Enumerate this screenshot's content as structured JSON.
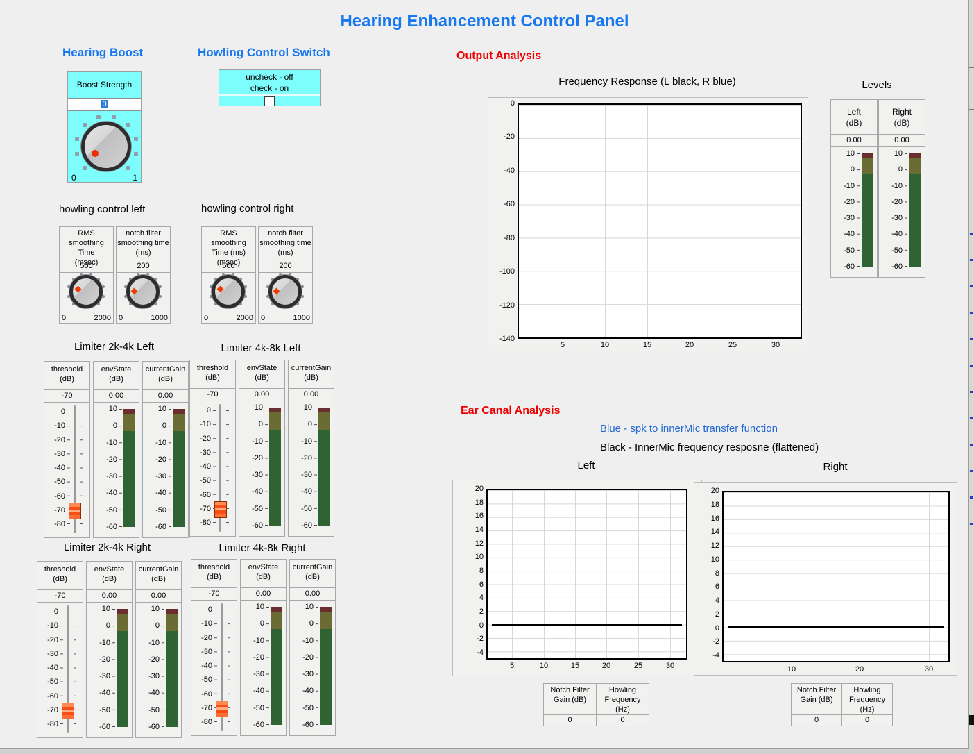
{
  "window": {
    "title": "Hearing Enhancement Control Panel"
  },
  "colors": {
    "accent_blue": "#1778f0",
    "heading_red": "#ee0000",
    "cyan_panel": "#7efdfd",
    "legend_blue": "#2468d4",
    "meter_red": "#6b2e2e",
    "meter_olive": "#6b6b34",
    "meter_green": "#306334",
    "slider_orange": "#f64e14"
  },
  "hearing_boost": {
    "heading": "Hearing Boost",
    "label": "Boost Strength",
    "value": "0",
    "min": "0",
    "max": "1"
  },
  "howling_switch": {
    "heading": "Howling Control Switch",
    "caption": "uncheck - off\ncheck - on",
    "checked": false
  },
  "howling_controls": [
    {
      "title": "howling control left",
      "knobs": [
        {
          "label": "RMS smoothing\nTime\n(msec)",
          "value": "500",
          "min": "0",
          "max": "2000"
        },
        {
          "label": "notch filter\nsmoothing time\n(ms)",
          "value": "200",
          "min": "0",
          "max": "1000"
        }
      ]
    },
    {
      "title": "howling control right",
      "knobs": [
        {
          "label": "RMS smoothing\nTime (ms)\n(msec)",
          "value": "500",
          "min": "0",
          "max": "2000"
        },
        {
          "label": "notch filter\nsmoothing time\n(ms)",
          "value": "200",
          "min": "0",
          "max": "1000"
        }
      ]
    }
  ],
  "threshold_scale": [
    "0",
    "-10",
    "-20",
    "-30",
    "-40",
    "-50",
    "-60",
    "-70",
    "-80"
  ],
  "meter_scale": [
    "10",
    "0",
    "-10",
    "-20",
    "-30",
    "-40",
    "-50",
    "-60"
  ],
  "limiters": [
    {
      "title": "Limiter 2k-4k Left",
      "columns": {
        "threshold": {
          "label": "threshold\n(dB)",
          "value": "-70"
        },
        "env": {
          "label": "envState\n(dB)",
          "value": "0.00"
        },
        "gain": {
          "label": "currentGain\n(dB)",
          "value": "0.00"
        }
      }
    },
    {
      "title": "Limiter 4k-8k Left",
      "columns": {
        "threshold": {
          "label": "threshold\n(dB)",
          "value": "-70"
        },
        "env": {
          "label": "envState\n(dB)",
          "value": "0.00"
        },
        "gain": {
          "label": "currentGain\n(dB)",
          "value": "0.00"
        }
      }
    },
    {
      "title": "Limiter 2k-4k Right",
      "columns": {
        "threshold": {
          "label": "threshold\n(dB)",
          "value": "-70"
        },
        "env": {
          "label": "envState\n(dB)",
          "value": "0.00"
        },
        "gain": {
          "label": "currentGain\n(dB)",
          "value": "0.00"
        }
      }
    },
    {
      "title": "Limiter 4k-8k Right",
      "columns": {
        "threshold": {
          "label": "threshold\n(dB)",
          "value": "-70"
        },
        "env": {
          "label": "envState\n(dB)",
          "value": "0.00"
        },
        "gain": {
          "label": "currentGain\n(dB)",
          "value": "0.00"
        }
      }
    }
  ],
  "output_analysis": {
    "heading": "Output Analysis",
    "chart_title": "Frequency Response (L black, R blue)"
  },
  "levels": {
    "heading": "Levels",
    "meters": [
      {
        "label": "Left\n(dB)",
        "value": "0.00"
      },
      {
        "label": "Right\n(dB)",
        "value": "0.00"
      }
    ]
  },
  "ear_canal": {
    "heading": "Ear Canal Analysis",
    "legend_blue": "Blue - spk to innerMic transfer function",
    "legend_black": "Black - InnerMic frequency resposne (flattened)",
    "left_title": "Left",
    "right_title": "Right"
  },
  "notch_tables": [
    {
      "headers": [
        "Notch Filter\nGain (dB)",
        "Howling\nFrequency\n(Hz)"
      ],
      "values": [
        "0",
        "0"
      ]
    },
    {
      "headers": [
        "Notch Filter\nGain (dB)",
        "Howling\nFrequency\n(Hz)"
      ],
      "values": [
        "0",
        "0"
      ]
    }
  ],
  "axes": {
    "fr_y": [
      "0",
      "-20",
      "-40",
      "-60",
      "-80",
      "-100",
      "-120",
      "-140"
    ],
    "fr_x": [
      "5",
      "10",
      "15",
      "20",
      "25",
      "30"
    ],
    "ear_y": [
      "20",
      "18",
      "16",
      "14",
      "12",
      "10",
      "8",
      "6",
      "4",
      "2",
      "0",
      "-2",
      "-4"
    ],
    "ear_left_x": [
      "5",
      "10",
      "15",
      "20",
      "25",
      "30"
    ],
    "ear_right_x": [
      "10",
      "20",
      "30"
    ]
  },
  "chart_data": [
    {
      "type": "line",
      "title": "Frequency Response (L black, R blue)",
      "xlabel": "",
      "ylabel": "",
      "xlim": [
        1,
        33
      ],
      "ylim": [
        -140,
        0
      ],
      "x_ticks": [
        5,
        10,
        15,
        20,
        25,
        30
      ],
      "y_ticks": [
        0,
        -20,
        -40,
        -60,
        -80,
        -100,
        -120,
        -140
      ],
      "grid": true,
      "legend_position": "none",
      "series": [
        {
          "name": "L",
          "color": "#000000",
          "x": [],
          "y": []
        },
        {
          "name": "R",
          "color": "#0000ff",
          "x": [],
          "y": []
        }
      ]
    },
    {
      "type": "line",
      "title": "Left",
      "xlabel": "",
      "ylabel": "",
      "xlim": [
        1,
        33
      ],
      "ylim": [
        -5,
        20
      ],
      "x_ticks": [
        5,
        10,
        15,
        20,
        25,
        30
      ],
      "y_ticks": [
        20,
        18,
        16,
        14,
        12,
        10,
        8,
        6,
        4,
        2,
        0,
        -2,
        -4
      ],
      "grid": true,
      "series": [
        {
          "name": "InnerMic frequency resposne (flattened)",
          "color": "#000000",
          "x": [
            1,
            33
          ],
          "y": [
            0,
            0
          ]
        }
      ]
    },
    {
      "type": "line",
      "title": "Right",
      "xlabel": "",
      "ylabel": "",
      "xlim": [
        1,
        33
      ],
      "ylim": [
        -5,
        20
      ],
      "x_ticks": [
        10,
        20,
        30
      ],
      "y_ticks": [
        20,
        18,
        16,
        14,
        12,
        10,
        8,
        6,
        4,
        2,
        0,
        -2,
        -4
      ],
      "grid": true,
      "series": [
        {
          "name": "InnerMic frequency resposne (flattened)",
          "color": "#000000",
          "x": [
            1,
            33
          ],
          "y": [
            0,
            0
          ]
        }
      ]
    }
  ]
}
